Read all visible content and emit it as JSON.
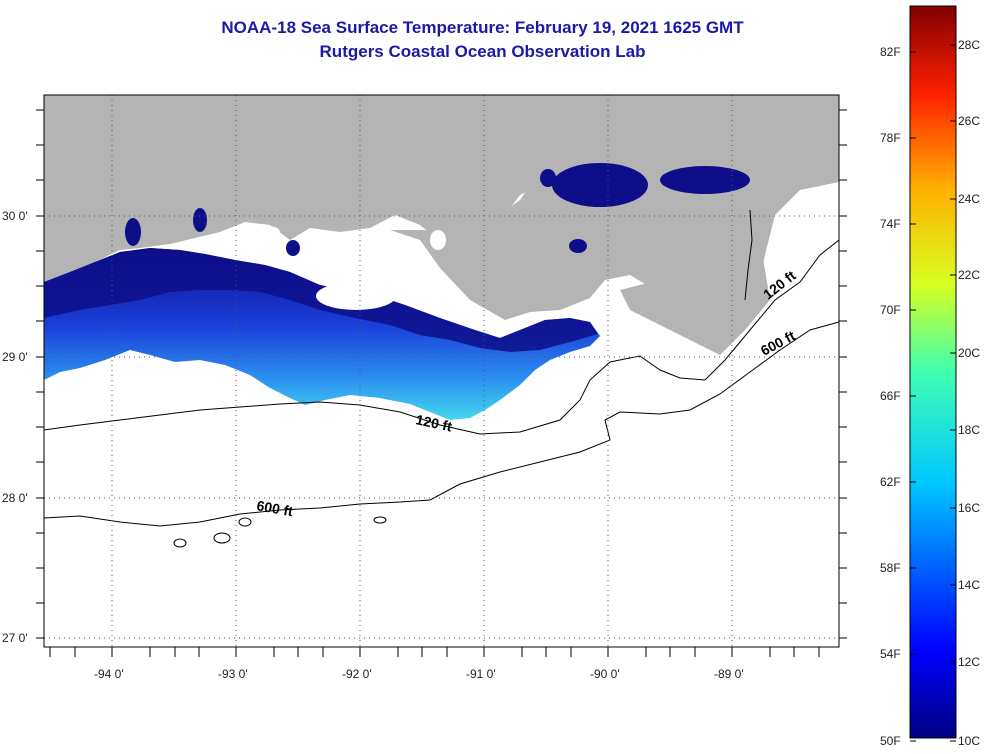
{
  "title": {
    "line1": "NOAA-18 Sea Surface Temperature:  February 19, 2021 1625 GMT",
    "line2": "Rutgers Coastal Ocean Observation Lab"
  },
  "map": {
    "lon_ticks": [
      "-94 0'",
      "-93 0'",
      "-92 0'",
      "-91 0'",
      "-90 0'",
      "-89 0'"
    ],
    "lat_ticks": [
      "30 0'",
      "29 0'",
      "28 0'",
      "27 0'"
    ],
    "contours": [
      {
        "label": "120 ft"
      },
      {
        "label": "600 ft"
      }
    ],
    "contour_labels": [
      "120 ft",
      "120 ft",
      "600 ft",
      "600 ft"
    ],
    "colors": {
      "land": "#b4b4b4",
      "water_nodata": "#ffffff",
      "sst_cold": "#0a0a8c",
      "sst_mid": "#1e6ef0",
      "sst_warm": "#3fd7f0"
    }
  },
  "colorbar": {
    "f_labels": [
      "82F",
      "78F",
      "74F",
      "70F",
      "66F",
      "62F",
      "58F",
      "54F",
      "50F"
    ],
    "c_labels": [
      "28C",
      "26C",
      "24C",
      "22C",
      "20C",
      "18C",
      "16C",
      "14C",
      "12C",
      "10C"
    ],
    "range_c": [
      10,
      29
    ]
  }
}
